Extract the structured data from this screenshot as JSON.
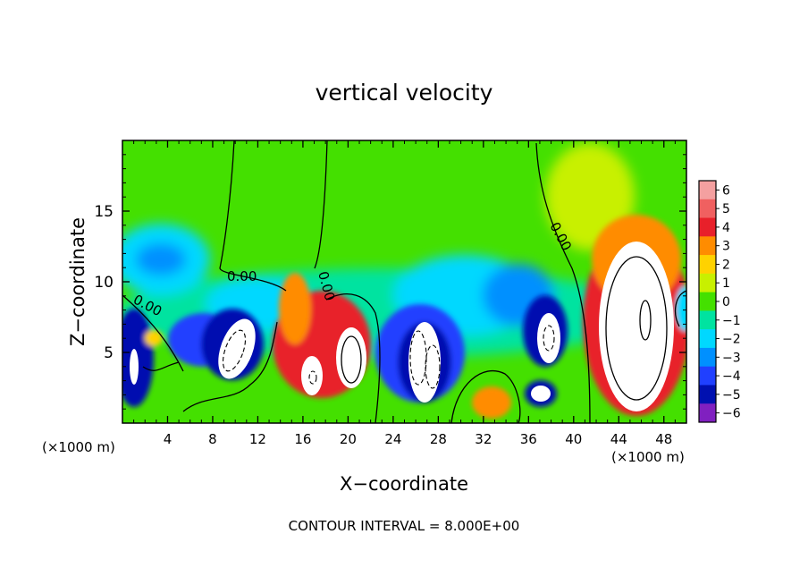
{
  "chart_data": {
    "type": "heatmap",
    "title": "vertical velocity",
    "xlabel": "X−coordinate",
    "ylabel": "Z−coordinate",
    "x_unit_left": "(×1000 m)",
    "x_unit_right": "(×1000 m)",
    "xlim": [
      0,
      50
    ],
    "ylim": [
      0,
      20
    ],
    "x_ticks": [
      "4",
      "8",
      "12",
      "16",
      "20",
      "24",
      "28",
      "32",
      "36",
      "40",
      "44",
      "48"
    ],
    "x_tick_values": [
      4,
      8,
      12,
      16,
      20,
      24,
      28,
      32,
      36,
      40,
      44,
      48
    ],
    "y_ticks": [
      "5",
      "10",
      "15"
    ],
    "y_tick_values": [
      5,
      10,
      15
    ],
    "colorbar": {
      "labels": [
        "6",
        "5",
        "4",
        "3",
        "2",
        "1",
        "0",
        "−1",
        "−2",
        "−3",
        "−4",
        "−5",
        "−6"
      ],
      "values": [
        6,
        5,
        4,
        3,
        2,
        1,
        0,
        -1,
        -2,
        -3,
        -4,
        -5,
        -6
      ],
      "colors": [
        "#f4a0a0",
        "#f06060",
        "#e8202a",
        "#ff8c00",
        "#ffd200",
        "#c8f000",
        "#44e000",
        "#00e3a0",
        "#00d8ff",
        "#0090ff",
        "#2040ff",
        "#0010b0",
        "#8020c0"
      ]
    },
    "contour_labels": [
      "0.00",
      "0.00",
      "0.00",
      "0.00"
    ],
    "cells": [
      {
        "x": 1,
        "z": 5,
        "w": -5
      },
      {
        "x": 2,
        "z": 3,
        "w": -4
      },
      {
        "x": 3,
        "z": 6,
        "w": 3
      },
      {
        "x": 3,
        "z": 12,
        "w": -2.5
      },
      {
        "x": 7.5,
        "z": 5.5,
        "w": -5
      },
      {
        "x": 10,
        "z": 5,
        "w": -6.5
      },
      {
        "x": 16.5,
        "z": 5,
        "w": 5
      },
      {
        "x": 17,
        "z": 3,
        "w": 6.5
      },
      {
        "x": 19.5,
        "z": 5,
        "w": 4
      },
      {
        "x": 20,
        "z": 4.5,
        "w": 6.5
      },
      {
        "x": 15.5,
        "z": 8.5,
        "w": 2
      },
      {
        "x": 25,
        "z": 5,
        "w": -5
      },
      {
        "x": 27,
        "z": 5,
        "w": -6.5
      },
      {
        "x": 28,
        "z": 8,
        "w": -3
      },
      {
        "x": 32.5,
        "z": 2,
        "w": 3
      },
      {
        "x": 34,
        "z": 7.5,
        "w": -4
      },
      {
        "x": 37,
        "z": 6.5,
        "w": -6.5
      },
      {
        "x": 36.5,
        "z": 2.5,
        "w": -6
      },
      {
        "x": 45,
        "z": 8,
        "w": 6.5
      },
      {
        "x": 45,
        "z": 13,
        "w": 3
      },
      {
        "x": 38,
        "z": 10,
        "w": -2
      },
      {
        "x": 49.5,
        "z": 8,
        "w": -2.5
      }
    ],
    "note": "CONTOUR INTERVAL = 8.000E+00"
  }
}
